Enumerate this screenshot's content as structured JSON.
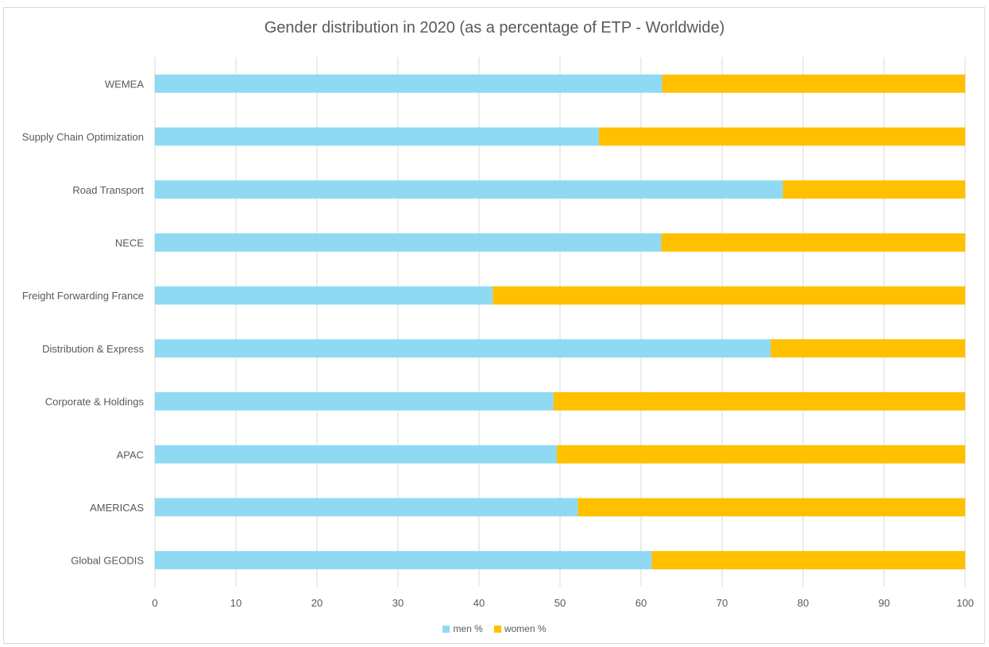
{
  "chart_data": {
    "type": "bar",
    "orientation": "horizontal",
    "stacked": true,
    "title": "Gender distribution in 2020 (as a percentage of ETP - Worldwide)",
    "xlabel": "",
    "ylabel": "",
    "categories": [
      "WEMEA",
      "Supply Chain Optimization",
      "Road Transport",
      "NECE",
      "Freight Forwarding France",
      "Distribution & Express",
      "Corporate & Holdings",
      "APAC",
      "AMERICAS",
      "Global GEODIS"
    ],
    "series": [
      {
        "name": "men %",
        "color": "#8fdaf2",
        "values": [
          62.6,
          54.8,
          77.5,
          62.5,
          41.7,
          76.0,
          49.2,
          49.6,
          52.2,
          61.3
        ]
      },
      {
        "name": "women %",
        "color": "#ffc000",
        "values": [
          37.4,
          45.2,
          22.5,
          37.5,
          58.3,
          24.0,
          50.8,
          50.4,
          47.8,
          38.7
        ]
      }
    ],
    "xlim": [
      0,
      100
    ],
    "xticks": [
      "0",
      "10",
      "20",
      "30",
      "40",
      "50",
      "60",
      "70",
      "80",
      "90",
      "100"
    ],
    "grid": true,
    "legend_position": "bottom"
  }
}
